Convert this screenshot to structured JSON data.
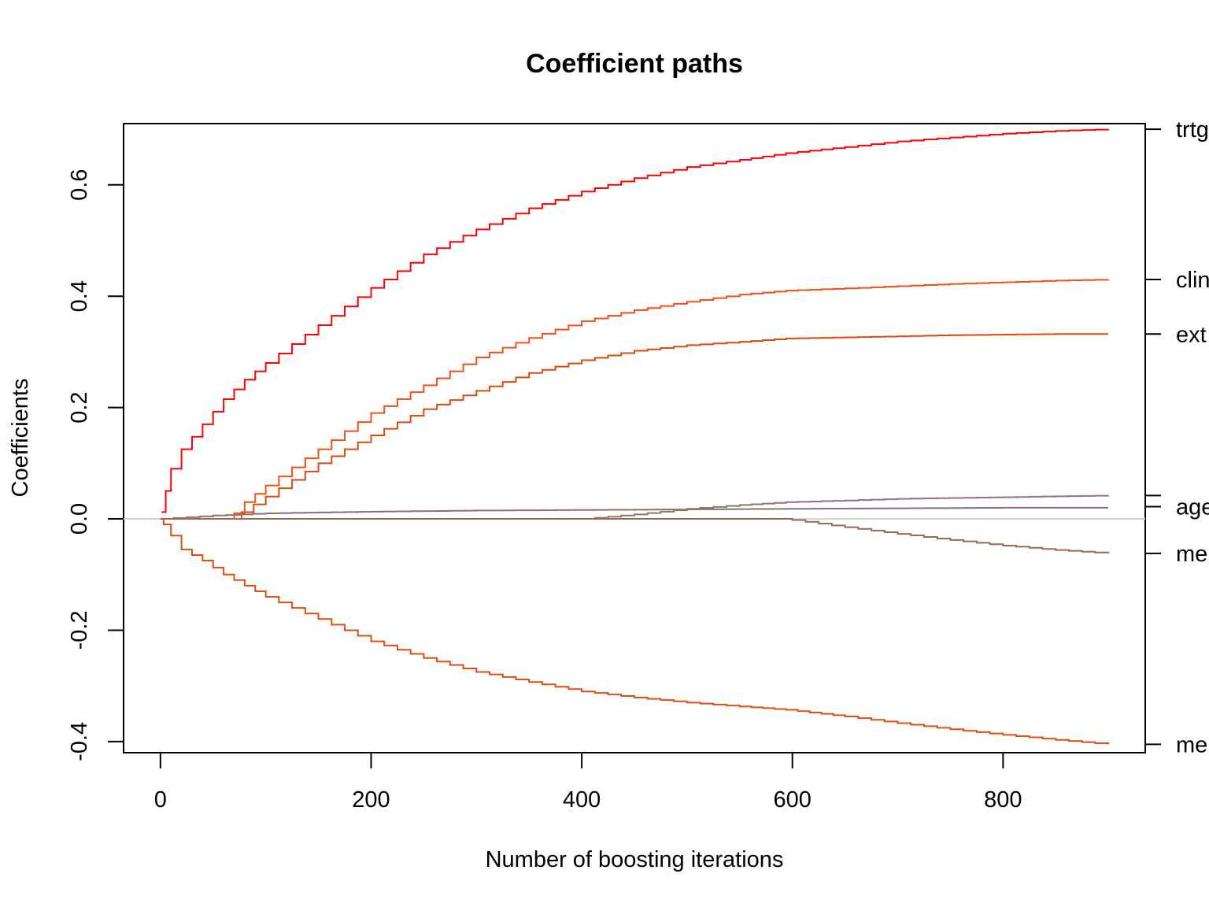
{
  "chart_data": {
    "type": "line",
    "title": "Coefficient paths",
    "xlabel": "Number of boosting iterations",
    "ylabel": "Coefficients",
    "xlim": [
      -35,
      935
    ],
    "ylim": [
      -0.42,
      0.71
    ],
    "x_ticks": [
      0,
      200,
      400,
      600,
      800
    ],
    "x_tick_labels": [
      "0",
      "200",
      "400",
      "600",
      "800"
    ],
    "y_ticks": [
      -0.4,
      -0.2,
      0.0,
      0.2,
      0.4,
      0.6
    ],
    "y_tick_labels": [
      "-0.4",
      "-0.2",
      "0.0",
      "0.2",
      "0.4",
      "0.6"
    ],
    "zero_line_color": "#d3d3d3",
    "grid": false,
    "series": [
      {
        "name": "trtg",
        "color": "#ff0000",
        "points": [
          [
            1,
            0.012
          ],
          [
            5,
            0.05
          ],
          [
            10,
            0.09
          ],
          [
            20,
            0.125
          ],
          [
            40,
            0.17
          ],
          [
            60,
            0.215
          ],
          [
            80,
            0.25
          ],
          [
            100,
            0.28
          ],
          [
            150,
            0.348
          ],
          [
            200,
            0.415
          ],
          [
            250,
            0.475
          ],
          [
            300,
            0.52
          ],
          [
            350,
            0.558
          ],
          [
            400,
            0.588
          ],
          [
            450,
            0.612
          ],
          [
            500,
            0.632
          ],
          [
            550,
            0.645
          ],
          [
            594,
            0.657
          ],
          [
            650,
            0.668
          ],
          [
            700,
            0.678
          ],
          [
            750,
            0.685
          ],
          [
            800,
            0.692
          ],
          [
            850,
            0.697
          ],
          [
            900,
            0.7
          ]
        ]
      },
      {
        "name": "clin",
        "color": "#f0501a",
        "points": [
          [
            0,
            0.0
          ],
          [
            64,
            0.0
          ],
          [
            70,
            0.01
          ],
          [
            80,
            0.03
          ],
          [
            100,
            0.06
          ],
          [
            150,
            0.125
          ],
          [
            200,
            0.19
          ],
          [
            250,
            0.24
          ],
          [
            300,
            0.29
          ],
          [
            350,
            0.325
          ],
          [
            400,
            0.355
          ],
          [
            450,
            0.375
          ],
          [
            500,
            0.39
          ],
          [
            550,
            0.403
          ],
          [
            594,
            0.41
          ],
          [
            650,
            0.414
          ],
          [
            700,
            0.418
          ],
          [
            750,
            0.422
          ],
          [
            800,
            0.425
          ],
          [
            850,
            0.428
          ],
          [
            900,
            0.43
          ]
        ]
      },
      {
        "name": "ext",
        "color": "#dc4a0c",
        "points": [
          [
            0,
            0.0
          ],
          [
            77,
            0.0
          ],
          [
            77,
            0.012
          ],
          [
            100,
            0.04
          ],
          [
            150,
            0.1
          ],
          [
            200,
            0.15
          ],
          [
            250,
            0.197
          ],
          [
            300,
            0.23
          ],
          [
            350,
            0.262
          ],
          [
            400,
            0.285
          ],
          [
            450,
            0.302
          ],
          [
            500,
            0.312
          ],
          [
            550,
            0.318
          ],
          [
            594,
            0.324
          ],
          [
            650,
            0.326
          ],
          [
            700,
            0.328
          ],
          [
            750,
            0.33
          ],
          [
            800,
            0.331
          ],
          [
            850,
            0.332
          ],
          [
            900,
            0.332
          ]
        ]
      },
      {
        "name": "age",
        "color": "#8c7268",
        "points": [
          [
            0,
            0.0
          ],
          [
            50,
            0.006
          ],
          [
            100,
            0.01
          ],
          [
            200,
            0.013
          ],
          [
            300,
            0.015
          ],
          [
            400,
            0.016
          ],
          [
            500,
            0.017
          ],
          [
            594,
            0.018
          ],
          [
            700,
            0.019
          ],
          [
            800,
            0.02
          ],
          [
            900,
            0.02
          ]
        ]
      },
      {
        "name": "",
        "color": "#8f7770",
        "points": [
          [
            0,
            0.0
          ],
          [
            400,
            0.0
          ],
          [
            450,
            0.008
          ],
          [
            500,
            0.018
          ],
          [
            550,
            0.025
          ],
          [
            594,
            0.03
          ],
          [
            650,
            0.033
          ],
          [
            700,
            0.036
          ],
          [
            800,
            0.039
          ],
          [
            900,
            0.042
          ]
        ]
      },
      {
        "name": "me",
        "color": "#9a6a4e",
        "points": [
          [
            0,
            0.0
          ],
          [
            594,
            0.0
          ],
          [
            600,
            -0.002
          ],
          [
            650,
            -0.015
          ],
          [
            700,
            -0.027
          ],
          [
            750,
            -0.038
          ],
          [
            800,
            -0.048
          ],
          [
            850,
            -0.056
          ],
          [
            900,
            -0.062
          ]
        ]
      },
      {
        "name": "me",
        "color": "#e04d12",
        "points": [
          [
            0,
            0.0
          ],
          [
            3,
            -0.01
          ],
          [
            10,
            -0.03
          ],
          [
            20,
            -0.055
          ],
          [
            40,
            -0.075
          ],
          [
            60,
            -0.1
          ],
          [
            80,
            -0.12
          ],
          [
            100,
            -0.14
          ],
          [
            150,
            -0.18
          ],
          [
            200,
            -0.22
          ],
          [
            250,
            -0.25
          ],
          [
            300,
            -0.275
          ],
          [
            350,
            -0.293
          ],
          [
            400,
            -0.31
          ],
          [
            450,
            -0.321
          ],
          [
            500,
            -0.33
          ],
          [
            550,
            -0.337
          ],
          [
            594,
            -0.343
          ],
          [
            650,
            -0.355
          ],
          [
            700,
            -0.367
          ],
          [
            750,
            -0.378
          ],
          [
            800,
            -0.388
          ],
          [
            850,
            -0.397
          ],
          [
            900,
            -0.405
          ]
        ]
      }
    ],
    "right_labels": [
      {
        "text": "trtg",
        "y": 0.7
      },
      {
        "text": "clin",
        "y": 0.43
      },
      {
        "text": "ext",
        "y": 0.332
      },
      {
        "text": "",
        "y": 0.042
      },
      {
        "text": "age",
        "y": 0.022
      },
      {
        "text": "me",
        "y": -0.062
      },
      {
        "text": "me",
        "y": -0.405
      }
    ]
  }
}
